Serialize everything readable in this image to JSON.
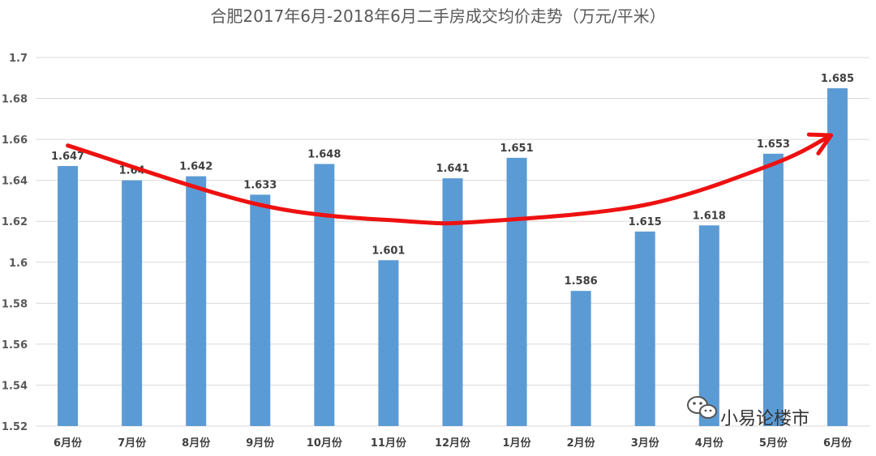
{
  "chart_data": {
    "type": "bar",
    "title": "合肥2017年6月-2018年6月二手房成交均价走势（万元/平米）",
    "categories": [
      "6月份",
      "7月份",
      "8月份",
      "9月份",
      "10月份",
      "11月份",
      "12月份",
      "1月份",
      "2月份",
      "3月份",
      "4月份",
      "5月份",
      "6月份"
    ],
    "values": [
      1.647,
      1.64,
      1.642,
      1.633,
      1.648,
      1.601,
      1.641,
      1.651,
      1.586,
      1.615,
      1.618,
      1.653,
      1.685
    ],
    "data_labels": [
      "1.647",
      "1.64",
      "1.642",
      "1.633",
      "1.648",
      "1.601",
      "1.641",
      "1.651",
      "1.586",
      "1.615",
      "1.618",
      "1.653",
      "1.685"
    ],
    "ylim": [
      1.52,
      1.7
    ],
    "yticks": [
      "1.52",
      "1.54",
      "1.56",
      "1.58",
      "1.6",
      "1.62",
      "1.64",
      "1.66",
      "1.68",
      "1.7"
    ],
    "grid": true,
    "legend": "none",
    "bar_color": "#5b9bd5",
    "trend_arrow": {
      "color": "#ee1111",
      "points": [
        [
          0,
          1.657
        ],
        [
          3,
          1.628
        ],
        [
          5.3,
          1.62
        ],
        [
          6.5,
          1.62
        ],
        [
          9,
          1.628
        ],
        [
          11,
          1.648
        ],
        [
          11.9,
          1.662
        ]
      ]
    }
  },
  "watermark": {
    "text": "小易论楼市",
    "icon": "wechat-icon"
  }
}
